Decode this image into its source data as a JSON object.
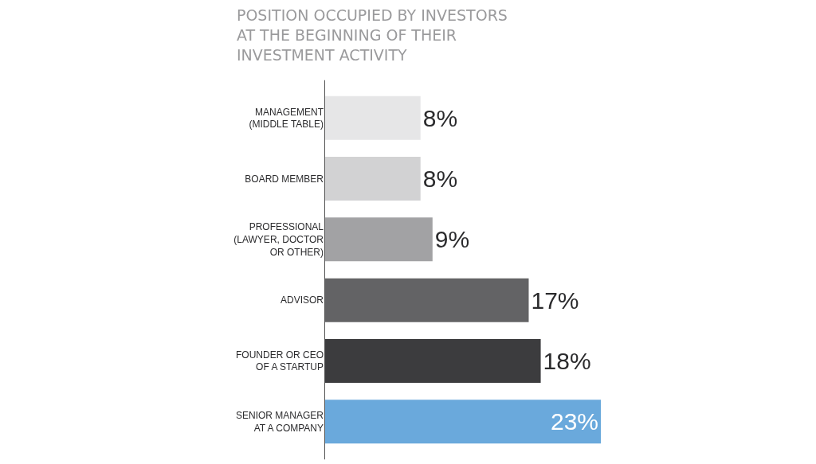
{
  "chart_data": {
    "type": "bar",
    "orientation": "horizontal",
    "title": "POSITION OCCUPIED BY INVESTORS\nAT THE BEGINNING OF THEIR\nINVESTMENT ACTIVITY",
    "categories": [
      "MANAGEMENT\n(MIDDLE TABLE)",
      "BOARD MEMBER",
      "PROFESSIONAL\n(LAWYER, DOCTOR\nOR OTHER)",
      "ADVISOR",
      "FOUNDER OR CEO\nOF A STARTUP",
      "SENIOR MANAGER\nAT A COMPANY"
    ],
    "values": [
      8,
      8,
      9,
      17,
      18,
      23
    ],
    "value_labels": [
      "8%",
      "8%",
      "9%",
      "17%",
      "18%",
      "23%"
    ],
    "colors": [
      "#e6e6e7",
      "#d2d2d3",
      "#a2a2a4",
      "#636365",
      "#3c3c3e",
      "#6aa9dc"
    ],
    "tick_labels": "y",
    "legend": false
  }
}
